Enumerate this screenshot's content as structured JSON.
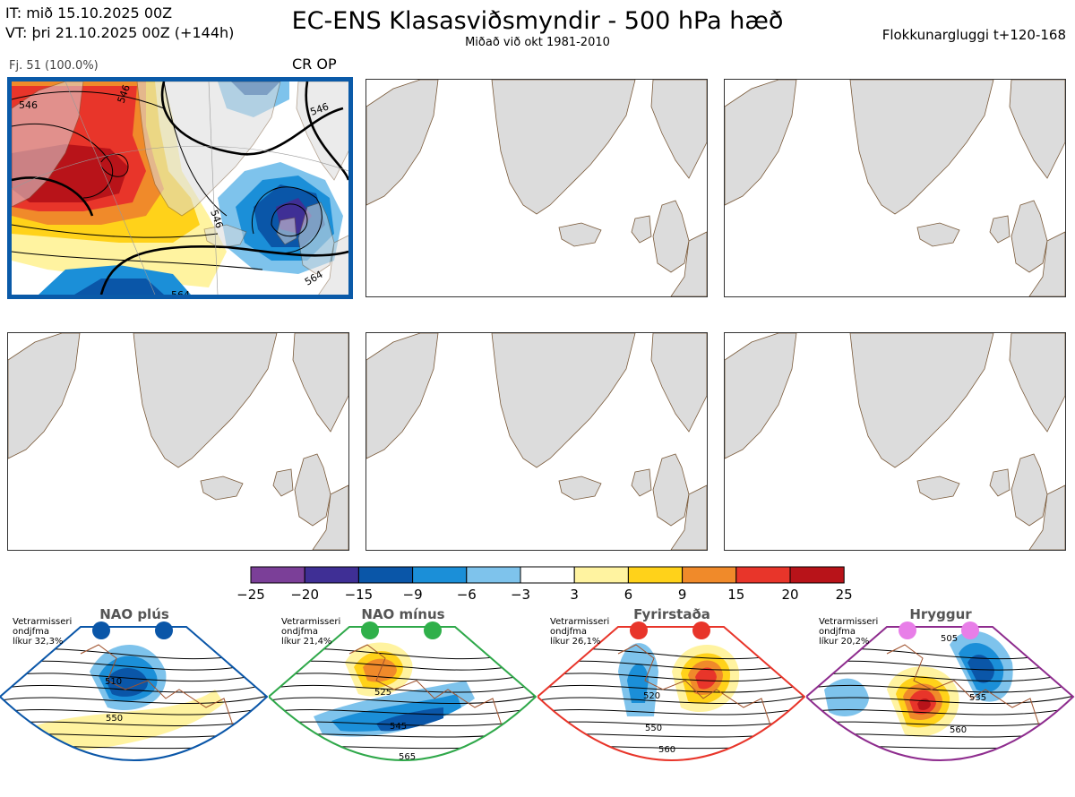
{
  "header": {
    "it_line": "IT: mið 15.10.2025 00Z",
    "vt_line": "VT: þri 21.10.2025 00Z  (+144h)",
    "title": "EC-ENS Klasasviðsmyndir - 500 hPa hæð",
    "subtitle": "Miðað við okt 1981-2010",
    "window": "Flokkunargluggi t+120-168"
  },
  "member": {
    "label": "Fj. 51 (100.0%)",
    "tag": "CR OP"
  },
  "contour_labels": {
    "a": "546",
    "b": "546",
    "c": "546",
    "d": "546",
    "e": "564",
    "f": "564"
  },
  "colorbar": {
    "ticks": [
      "−25",
      "−20",
      "−15",
      "−9",
      "−6",
      "−3",
      "3",
      "6",
      "9",
      "15",
      "20",
      "25"
    ],
    "colors": [
      "#7b3f98",
      "#3f2f95",
      "#0a56a8",
      "#1b8fd8",
      "#7ec3ec",
      "#ffffff",
      "#fff3a0",
      "#ffd21a",
      "#f08a2a",
      "#e8352a",
      "#b81319"
    ]
  },
  "regimes": [
    {
      "title": "NAO plús",
      "text": [
        "Vetrarmisseri",
        "ondjfma",
        "líkur 32,3%"
      ],
      "frame": "#0a56a8",
      "dot": "#0a56a8",
      "labels": [
        "510",
        "550"
      ]
    },
    {
      "title": "NAO mínus",
      "text": [
        "Vetrarmisseri",
        "ondjfma",
        "líkur 21,4%"
      ],
      "frame": "#2fa84a",
      "dot": "#2fb04a",
      "labels": [
        "525",
        "545",
        "565"
      ]
    },
    {
      "title": "Fyrirstaða",
      "text": [
        "Vetrarmisseri",
        "ondjfma",
        "líkur 26,1%"
      ],
      "frame": "#e8352a",
      "dot": "#e8352a",
      "labels": [
        "520",
        "550",
        "560"
      ]
    },
    {
      "title": "Hryggur",
      "text": [
        "Vetrarmisseri",
        "ondjfma",
        "líkur 20,2%"
      ],
      "frame": "#8e2c8e",
      "dot": "#e87ee8",
      "labels": [
        "505",
        "535",
        "560"
      ]
    }
  ]
}
